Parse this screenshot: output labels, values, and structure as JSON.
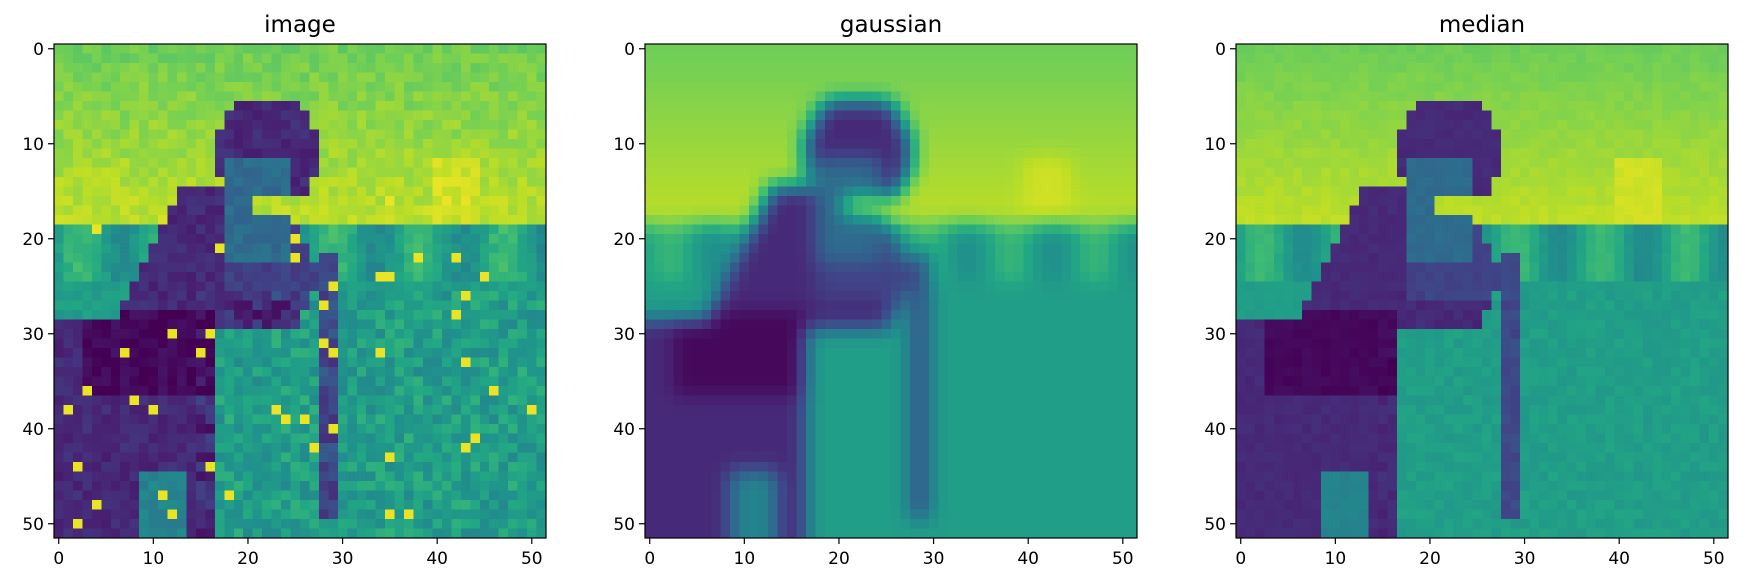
{
  "chart_data": [
    {
      "type": "heatmap",
      "title": "image",
      "colormap": "viridis",
      "x_ticks": [
        0,
        10,
        20,
        30,
        40,
        50
      ],
      "y_ticks": [
        0,
        10,
        20,
        30,
        40,
        50
      ],
      "xlim": [
        -0.5,
        51.5
      ],
      "ylim": [
        51.5,
        -0.5
      ],
      "grid_size": [
        52,
        52
      ],
      "variant": "raw"
    },
    {
      "type": "heatmap",
      "title": "gaussian",
      "colormap": "viridis",
      "x_ticks": [
        0,
        10,
        20,
        30,
        40,
        50
      ],
      "y_ticks": [
        0,
        10,
        20,
        30,
        40,
        50
      ],
      "xlim": [
        -0.5,
        51.5
      ],
      "ylim": [
        51.5,
        -0.5
      ],
      "grid_size": [
        52,
        52
      ],
      "variant": "gaussian"
    },
    {
      "type": "heatmap",
      "title": "median",
      "colormap": "viridis",
      "x_ticks": [
        0,
        10,
        20,
        30,
        40,
        50
      ],
      "y_ticks": [
        0,
        10,
        20,
        30,
        40,
        50
      ],
      "xlim": [
        -0.5,
        51.5
      ],
      "ylim": [
        51.5,
        -0.5
      ],
      "grid_size": [
        52,
        52
      ],
      "variant": "median"
    }
  ]
}
